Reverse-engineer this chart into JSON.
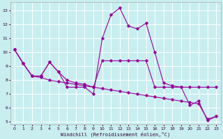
{
  "xlabel": "Windchill (Refroidissement éolien,°C)",
  "bg_color": "#c8eef0",
  "line_color": "#990099",
  "grid_color": "#ffffff",
  "xlim": [
    -0.5,
    23.5
  ],
  "ylim": [
    4.8,
    13.6
  ],
  "yticks": [
    5,
    6,
    7,
    8,
    9,
    10,
    11,
    12,
    13
  ],
  "xticks": [
    0,
    1,
    2,
    3,
    4,
    5,
    6,
    7,
    8,
    9,
    10,
    11,
    12,
    13,
    14,
    15,
    16,
    17,
    18,
    19,
    20,
    21,
    22,
    23
  ],
  "line1_x": [
    0,
    1,
    2,
    3,
    4,
    5,
    6,
    7,
    8,
    9,
    10,
    11,
    12,
    13,
    14,
    15,
    16,
    17,
    18,
    19,
    20,
    21,
    22,
    23
  ],
  "line1_y": [
    10.2,
    9.2,
    8.3,
    8.3,
    9.3,
    8.6,
    7.5,
    7.5,
    7.5,
    7.0,
    11.0,
    12.7,
    13.2,
    11.9,
    11.7,
    12.1,
    10.0,
    7.8,
    7.6,
    7.5,
    6.2,
    6.5,
    5.1,
    5.4
  ],
  "line2_x": [
    0,
    1,
    2,
    3,
    4,
    5,
    6,
    7,
    8,
    9,
    10,
    11,
    12,
    13,
    14,
    15,
    16,
    17,
    18,
    19,
    20,
    21,
    22,
    23
  ],
  "line2_y": [
    10.2,
    9.2,
    8.3,
    8.3,
    9.3,
    8.6,
    8.0,
    7.8,
    7.7,
    7.5,
    9.4,
    9.4,
    9.4,
    9.4,
    9.4,
    9.4,
    7.5,
    7.5,
    7.5,
    7.5,
    7.5,
    7.5,
    7.5,
    7.5
  ],
  "line3_x": [
    0,
    1,
    2,
    3,
    4,
    5,
    6,
    7,
    8,
    9,
    10,
    11,
    12,
    13,
    14,
    15,
    16,
    17,
    18,
    19,
    20,
    21,
    22,
    23
  ],
  "line3_y": [
    10.2,
    9.2,
    8.3,
    8.2,
    8.0,
    7.9,
    7.8,
    7.7,
    7.6,
    7.5,
    7.4,
    7.3,
    7.2,
    7.1,
    7.0,
    6.9,
    6.8,
    6.7,
    6.6,
    6.5,
    6.4,
    6.3,
    5.2,
    5.4
  ]
}
